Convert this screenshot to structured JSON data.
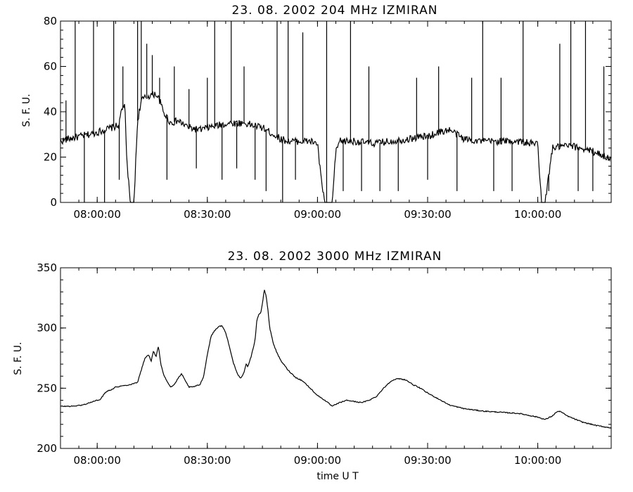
{
  "chart_data": [
    {
      "type": "line",
      "title": "23.  08.  2002    204 MHz    IZMIRAN",
      "ylabel": "S. F. U.",
      "xlabel": "",
      "x_unit": "UT",
      "xlim": [
        "07:50:00",
        "10:20:00"
      ],
      "ylim": [
        0,
        80
      ],
      "y_ticks": [
        0,
        20,
        40,
        60,
        80
      ],
      "x_ticks": [
        "08:00:00",
        "08:30:00",
        "09:00:00",
        "09:30:00",
        "10:00:00"
      ],
      "grid": false,
      "series": [
        {
          "x": [
            "07:50:00",
            "07:52:00",
            "07:55:00",
            "07:58:00",
            "08:00:00",
            "08:02:00",
            "08:04:00",
            "08:06:00",
            "08:06:30",
            "08:07:30",
            "08:08:00",
            "08:09:00",
            "08:10:00",
            "08:11:00",
            "08:12:00",
            "08:14:00",
            "08:16:00",
            "08:17:00",
            "08:18:00",
            "08:20:00",
            "08:22:00",
            "08:25:00",
            "08:28:00",
            "08:30:00",
            "08:33:00",
            "08:36:00",
            "08:40:00",
            "08:45:00",
            "08:48:00",
            "08:50:00",
            "08:52:00",
            "08:55:00",
            "08:58:00",
            "09:00:00",
            "09:01:00",
            "09:02:00",
            "09:03:00",
            "09:04:00",
            "09:05:00",
            "09:06:00",
            "09:10:00",
            "09:15:00",
            "09:20:00",
            "09:25:00",
            "09:28:00",
            "09:30:00",
            "09:33:00",
            "09:36:00",
            "09:40:00",
            "09:45:00",
            "09:50:00",
            "09:55:00",
            "09:58:00",
            "09:59:00",
            "10:00:00",
            "10:01:00",
            "10:02:00",
            "10:04:00",
            "10:08:00",
            "10:12:00",
            "10:16:00",
            "10:20:00"
          ],
          "y": [
            27,
            28,
            29,
            30,
            31,
            32,
            33,
            34,
            40,
            44,
            20,
            0,
            0,
            36,
            45,
            47,
            48,
            45,
            40,
            35,
            36,
            33,
            32,
            33,
            34,
            35,
            35,
            33,
            30,
            28,
            27,
            27,
            27,
            26,
            10,
            0,
            0,
            0,
            22,
            27,
            27,
            26,
            27,
            28,
            29,
            29,
            31,
            32,
            28,
            27,
            27,
            27,
            26,
            26,
            26,
            0,
            0,
            24,
            25,
            24,
            22,
            19
          ]
        }
      ],
      "spikes": [
        {
          "x": "07:51:30",
          "y": 45
        },
        {
          "x": "07:54:00",
          "y": 80
        },
        {
          "x": "07:56:30",
          "y": 0
        },
        {
          "x": "07:59:00",
          "y": 80
        },
        {
          "x": "08:02:00",
          "y": 0
        },
        {
          "x": "08:04:30",
          "y": 80
        },
        {
          "x": "08:06:00",
          "y": 10
        },
        {
          "x": "08:07:00",
          "y": 60
        },
        {
          "x": "08:11:00",
          "y": 80
        },
        {
          "x": "08:12:00",
          "y": 80
        },
        {
          "x": "08:13:30",
          "y": 70
        },
        {
          "x": "08:15:00",
          "y": 65
        },
        {
          "x": "08:17:00",
          "y": 55
        },
        {
          "x": "08:19:00",
          "y": 10
        },
        {
          "x": "08:21:00",
          "y": 60
        },
        {
          "x": "08:25:00",
          "y": 50
        },
        {
          "x": "08:27:00",
          "y": 15
        },
        {
          "x": "08:30:00",
          "y": 55
        },
        {
          "x": "08:32:00",
          "y": 80
        },
        {
          "x": "08:34:00",
          "y": 10
        },
        {
          "x": "08:36:30",
          "y": 80
        },
        {
          "x": "08:38:00",
          "y": 15
        },
        {
          "x": "08:40:00",
          "y": 60
        },
        {
          "x": "08:43:00",
          "y": 10
        },
        {
          "x": "08:46:00",
          "y": 5
        },
        {
          "x": "08:49:00",
          "y": 80
        },
        {
          "x": "08:50:30",
          "y": 0
        },
        {
          "x": "08:52:00",
          "y": 80
        },
        {
          "x": "08:54:00",
          "y": 10
        },
        {
          "x": "08:56:00",
          "y": 75
        },
        {
          "x": "09:02:30",
          "y": 80
        },
        {
          "x": "09:07:00",
          "y": 5
        },
        {
          "x": "09:09:00",
          "y": 80
        },
        {
          "x": "09:12:00",
          "y": 5
        },
        {
          "x": "09:14:00",
          "y": 60
        },
        {
          "x": "09:17:00",
          "y": 5
        },
        {
          "x": "09:22:00",
          "y": 5
        },
        {
          "x": "09:27:00",
          "y": 55
        },
        {
          "x": "09:30:00",
          "y": 10
        },
        {
          "x": "09:33:00",
          "y": 60
        },
        {
          "x": "09:38:00",
          "y": 5
        },
        {
          "x": "09:42:00",
          "y": 55
        },
        {
          "x": "09:45:00",
          "y": 80
        },
        {
          "x": "09:48:00",
          "y": 5
        },
        {
          "x": "09:50:00",
          "y": 55
        },
        {
          "x": "09:53:00",
          "y": 5
        },
        {
          "x": "09:56:00",
          "y": 80
        },
        {
          "x": "10:03:00",
          "y": 5
        },
        {
          "x": "10:06:00",
          "y": 70
        },
        {
          "x": "10:09:00",
          "y": 80
        },
        {
          "x": "10:11:00",
          "y": 5
        },
        {
          "x": "10:13:00",
          "y": 80
        },
        {
          "x": "10:15:00",
          "y": 5
        },
        {
          "x": "10:18:00",
          "y": 60
        }
      ]
    },
    {
      "type": "line",
      "title": "23.  08.  2002    3000 MHz    IZMIRAN",
      "ylabel": "S. F. U.",
      "xlabel": "time   U T",
      "xlim": [
        "07:50:00",
        "10:20:00"
      ],
      "ylim": [
        200,
        350
      ],
      "y_ticks": [
        200,
        250,
        300,
        350
      ],
      "x_ticks": [
        "08:00:00",
        "08:30:00",
        "09:00:00",
        "09:30:00",
        "10:00:00"
      ],
      "grid": false,
      "series": [
        {
          "x": [
            "07:50:00",
            "07:53:00",
            "07:56:00",
            "07:59:00",
            "08:01:00",
            "08:02:00",
            "08:03:00",
            "08:04:00",
            "08:05:00",
            "08:07:00",
            "08:09:00",
            "08:11:00",
            "08:12:00",
            "08:13:00",
            "08:14:00",
            "08:14:40",
            "08:15:20",
            "08:16:00",
            "08:16:40",
            "08:17:20",
            "08:18:00",
            "08:19:00",
            "08:20:00",
            "08:21:00",
            "08:22:00",
            "08:23:00",
            "08:24:00",
            "08:25:00",
            "08:26:00",
            "08:28:00",
            "08:29:00",
            "08:30:00",
            "08:31:00",
            "08:32:00",
            "08:33:00",
            "08:34:00",
            "08:35:00",
            "08:36:00",
            "08:37:00",
            "08:38:00",
            "08:39:00",
            "08:40:00",
            "08:40:30",
            "08:41:00",
            "08:42:00",
            "08:43:00",
            "08:43:30",
            "08:44:00",
            "08:44:30",
            "08:45:00",
            "08:45:30",
            "08:46:00",
            "08:46:30",
            "08:47:00",
            "08:48:00",
            "08:49:00",
            "08:50:00",
            "08:52:00",
            "08:54:00",
            "08:56:00",
            "08:58:00",
            "09:00:00",
            "09:02:00",
            "09:04:00",
            "09:06:00",
            "09:08:00",
            "09:10:00",
            "09:12:00",
            "09:14:00",
            "09:16:00",
            "09:18:00",
            "09:20:00",
            "09:22:00",
            "09:24:00",
            "09:26:00",
            "09:28:00",
            "09:30:00",
            "09:33:00",
            "09:36:00",
            "09:40:00",
            "09:45:00",
            "09:50:00",
            "09:55:00",
            "10:00:00",
            "10:02:00",
            "10:04:00",
            "10:05:00",
            "10:06:00",
            "10:08:00",
            "10:12:00",
            "10:16:00",
            "10:20:00"
          ],
          "y": [
            235,
            235,
            236,
            239,
            241,
            246,
            248,
            249,
            251,
            252,
            253,
            255,
            265,
            275,
            278,
            272,
            281,
            276,
            285,
            270,
            262,
            256,
            251,
            253,
            258,
            262,
            256,
            251,
            251,
            253,
            260,
            278,
            293,
            298,
            301,
            302,
            296,
            285,
            272,
            263,
            258,
            263,
            270,
            268,
            277,
            290,
            307,
            311,
            312,
            320,
            332,
            327,
            315,
            300,
            287,
            279,
            273,
            265,
            259,
            256,
            250,
            244,
            240,
            235,
            238,
            240,
            239,
            238,
            240,
            243,
            250,
            256,
            258,
            257,
            253,
            250,
            246,
            241,
            236,
            233,
            231,
            230,
            229,
            226,
            224,
            227,
            230,
            231,
            227,
            222,
            219,
            217
          ]
        }
      ]
    }
  ]
}
